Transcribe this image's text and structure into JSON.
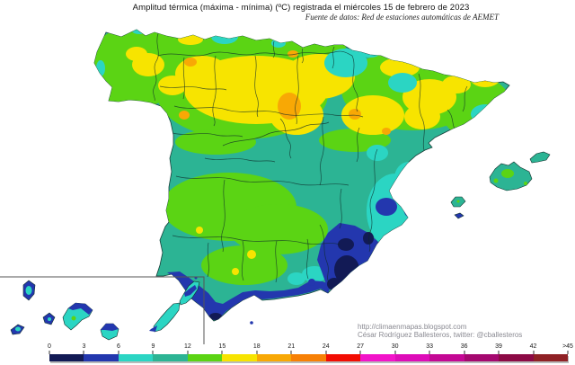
{
  "header": {
    "title": "Amplitud térmica (máxima - mínima) (ºC) registrada el miércoles 15 de febrero de 2023",
    "subtitle": "Fuente de datos: Red de estaciones automáticas de AEMET"
  },
  "footer": {
    "credit_url": "http://climaenmapas.blogspot.com",
    "credit_author": "César Rodríguez Ballesteros, twitter: @cballesteros"
  },
  "colorbar": {
    "tick_labels": [
      "0",
      "3",
      "6",
      "9",
      "12",
      "15",
      "18",
      "21",
      "24",
      "27",
      "30",
      "33",
      "36",
      "39",
      "42",
      ">45"
    ],
    "segments": [
      {
        "range": "0-3",
        "color": "#121A55"
      },
      {
        "range": "3-6",
        "color": "#2337AE"
      },
      {
        "range": "6-9",
        "color": "#2BD5C3"
      },
      {
        "range": "9-12",
        "color": "#2CB494"
      },
      {
        "range": "12-15",
        "color": "#5BD414"
      },
      {
        "range": "15-18",
        "color": "#F7E400"
      },
      {
        "range": "18-21",
        "color": "#F8A805"
      },
      {
        "range": "21-24",
        "color": "#F78005"
      },
      {
        "range": "24-27",
        "color": "#F20C02"
      },
      {
        "range": "27-30",
        "color": "#F214C9"
      },
      {
        "range": "30-33",
        "color": "#DD0CB8"
      },
      {
        "range": "33-36",
        "color": "#C30894"
      },
      {
        "range": "36-39",
        "color": "#A4086F"
      },
      {
        "range": "39-42",
        "color": "#8C0A45"
      },
      {
        "range": "42-45",
        "color": "#8F2125"
      }
    ]
  }
}
